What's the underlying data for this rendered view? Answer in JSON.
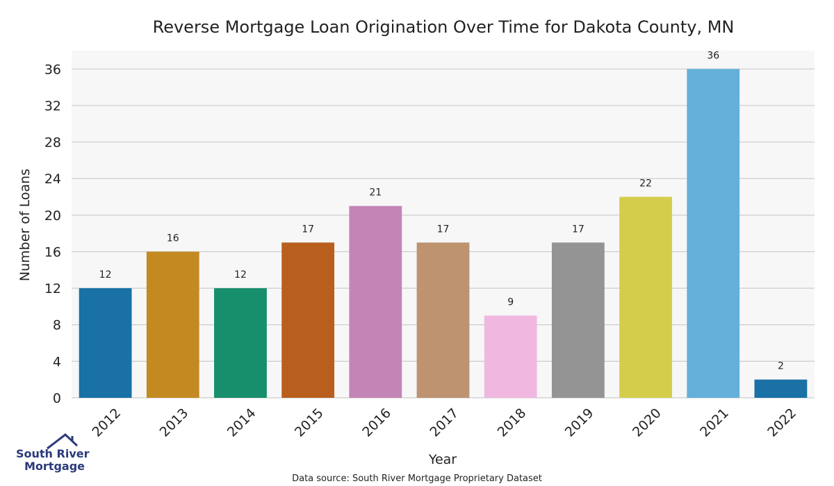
{
  "chart_data": {
    "type": "bar",
    "title": "Reverse Mortgage Loan Origination Over Time for Dakota County, MN",
    "xlabel": "Year",
    "ylabel": "Number of Loans",
    "categories": [
      "2012",
      "2013",
      "2014",
      "2015",
      "2016",
      "2017",
      "2018",
      "2019",
      "2020",
      "2021",
      "2022"
    ],
    "values": [
      12,
      16,
      12,
      17,
      21,
      17,
      9,
      17,
      22,
      36,
      2
    ],
    "ylim": [
      0,
      38
    ],
    "yticks": [
      0,
      4,
      8,
      12,
      16,
      20,
      24,
      28,
      32,
      36
    ],
    "grid": true,
    "bar_colors": [
      "#1a71a5",
      "#c48a22",
      "#178e6c",
      "#b95f1e",
      "#c384b6",
      "#bd9370",
      "#f0b8e0",
      "#949494",
      "#d4cd4b",
      "#65b0da",
      "#1a71a5"
    ]
  },
  "footer": {
    "source": "Data source: South River Mortgage Proprietary Dataset"
  },
  "logo": {
    "line1": "South River",
    "line2": "Mortgage",
    "color": "#2b3a7a"
  },
  "colors": {
    "plot_background": "#f7f7f7",
    "grid": "#cccccc"
  }
}
